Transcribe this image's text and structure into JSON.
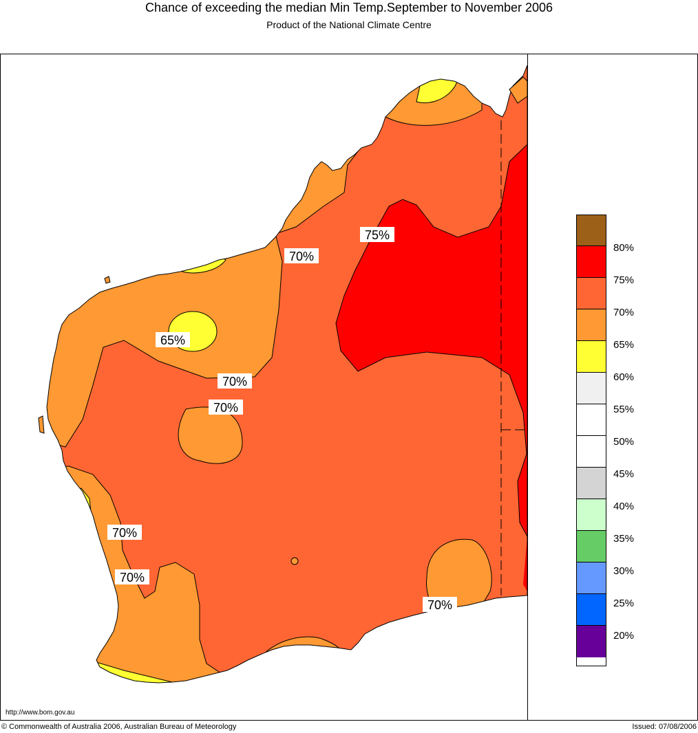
{
  "title": "Chance of exceeding the median Min Temp.September to November 2006",
  "subtitle": "Product of the National Climate Centre",
  "map": {
    "contour_labels": [
      "75%",
      "70%",
      "65%",
      "70%",
      "70%",
      "70%",
      "70%",
      "70%"
    ]
  },
  "legend": {
    "colors": [
      "#9c6018",
      "#ff0000",
      "#ff6633",
      "#ff9933",
      "#ffff33",
      "#f0f0f0",
      "#ffffff",
      "#ffffff",
      "#d4d4d4",
      "#ccffcc",
      "#66cc66",
      "#6699ff",
      "#0066ff",
      "#660099"
    ],
    "labels": [
      "80%",
      "75%",
      "70%",
      "65%",
      "60%",
      "55%",
      "50%",
      "45%",
      "40%",
      "35%",
      "30%",
      "25%",
      "20%"
    ]
  },
  "footer": {
    "url": "http://www.bom.gov.au",
    "copyright": "© Commonwealth of Australia 2006, Australian Bureau of Meteorology",
    "issued": "Issued: 07/08/2006"
  }
}
